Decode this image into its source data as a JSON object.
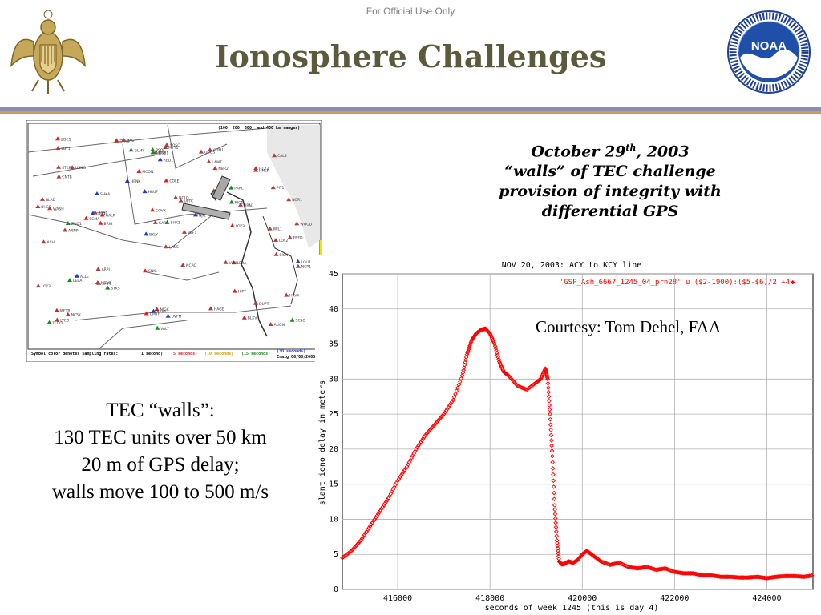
{
  "header": {
    "official_notice": "For Official Use Only",
    "title": "Ionosphere Challenges"
  },
  "logos": {
    "noaa_ring_text": "NATIONAL OCEANIC AND ATMOSPHERIC ADMINISTRATION · U.S. DEPARTMENT OF COMMERCE",
    "noaa_letters": "NOAA"
  },
  "caption": {
    "date_month_day": "October 29",
    "date_suffix": "th",
    "date_year": ", 2003",
    "line2": "“walls” of TEC challenge",
    "line3": "provision of integrity with",
    "line4": "differential GPS"
  },
  "walls_text": {
    "line1": "TEC “walls”:",
    "line2": "130 TEC units over 50 km",
    "line3": "20 m of GPS delay;",
    "line4": "walls move 100 to 500 m/s"
  },
  "map": {
    "header_note": "(100, 200, 300, and 400 km ranges)",
    "footer_note": "Symbol color denotes sampling rates:",
    "rate_1": "(1 second)",
    "rate_5": "(5 seconds)",
    "rate_10": "(10 seconds)",
    "rate_15": "(15 seconds)",
    "rate_30": "(30 seconds)",
    "credit": "Craig 06/08/2003",
    "station_labels": [
      "LANS",
      "BRIG",
      "METR",
      "HRUF",
      "CUM1",
      "ARPI",
      "BEF1",
      "TLDO",
      "ZOO1",
      "SCMA",
      "PIT1",
      "WOOD",
      "UPTC",
      "HRN1",
      "LYCO",
      "WIL1",
      "NJI2",
      "LAMT",
      "ROB1",
      "SNKI",
      "NOR1",
      "SHK1",
      "GARF",
      "SMFB",
      "STKS",
      "SCSO",
      "LEBA",
      "BLAD",
      "OTS1",
      "PARL",
      "BHES",
      "NJTW",
      "NJGC",
      "RED1",
      "PIT1",
      "ALLE",
      "HAGE",
      "HT23",
      "ZDC1",
      "DUPT",
      "SOSC",
      "MYT1",
      "SHKA",
      "USNO",
      "GODS",
      "ANNP",
      "LOY3",
      "RIC1",
      "VIMS",
      "GLMY",
      "LOY1",
      "DRV1",
      "COVX",
      "LOY2",
      "NCSK",
      "UVFM",
      "VALY",
      "BKLY",
      "BLKV",
      "LOU1",
      "PSOC",
      "NCRC",
      "HIPT",
      "RALR",
      "WASH",
      "NCP1",
      "NBR2",
      "NCLO",
      "FRED",
      "MCON",
      "MTVR",
      "SIGN",
      "HMLK",
      "GMTH",
      "STKR",
      "GALP",
      "VAST",
      "LOY3",
      "CAL8",
      "BSSP",
      "LEBA",
      "ASHL",
      "HPNK",
      "COLE",
      "AUGN",
      "HRVA",
      "CNTB"
    ]
  },
  "chart_data": {
    "type": "scatter",
    "title": "NOV 20, 2003: ACY to KCY line",
    "xlabel": "seconds of week 1245 (this is day 4)",
    "ylabel": "slant iono delay in meters",
    "xlim": [
      414800,
      425000
    ],
    "ylim": [
      0,
      45
    ],
    "xticks": [
      416000,
      418000,
      420000,
      422000,
      424000
    ],
    "yticks": [
      0,
      5,
      10,
      15,
      20,
      25,
      30,
      35,
      40,
      45
    ],
    "grid": true,
    "legend": "top-right",
    "color": "#ff0000",
    "series": [
      {
        "name": "'GSP_Ash_6667_1245_04_prn28' u ($2-1900):($5-$6)/2 +4",
        "x": [
          414800,
          415000,
          415200,
          415400,
          415600,
          415800,
          416000,
          416200,
          416400,
          416600,
          416800,
          417000,
          417200,
          417400,
          417500,
          417600,
          417700,
          417800,
          417900,
          418000,
          418100,
          418200,
          418300,
          418400,
          418600,
          418800,
          419000,
          419100,
          419200,
          419250,
          419300,
          419350,
          419400,
          419450,
          419500,
          419550,
          419600,
          419700,
          419800,
          419900,
          420000,
          420100,
          420200,
          420300,
          420400,
          420600,
          420800,
          421000,
          421200,
          421400,
          421600,
          421800,
          422000,
          422200,
          422400,
          422600,
          422800,
          423000,
          423200,
          423400,
          423600,
          423800,
          424000,
          424200,
          424400,
          424600,
          424800,
          425000
        ],
        "y": [
          4.5,
          5.5,
          7.0,
          9.0,
          11.0,
          13.0,
          15.5,
          17.5,
          20.0,
          22.0,
          23.5,
          25.0,
          27.0,
          30.5,
          33.5,
          35.5,
          36.5,
          37.0,
          37.2,
          36.5,
          35.0,
          32.5,
          31.0,
          30.5,
          29.0,
          28.5,
          29.5,
          30.0,
          31.5,
          30.0,
          25.0,
          19.0,
          12.0,
          7.0,
          4.0,
          3.6,
          3.6,
          4.0,
          3.8,
          4.2,
          5.0,
          5.5,
          5.0,
          4.5,
          4.0,
          3.5,
          3.8,
          3.2,
          3.0,
          3.2,
          2.8,
          3.0,
          2.5,
          2.3,
          2.3,
          2.0,
          2.0,
          1.8,
          1.8,
          1.7,
          1.7,
          1.8,
          1.6,
          1.8,
          1.9,
          1.9,
          1.8,
          2.0
        ]
      }
    ],
    "courtesy": "Courtesy: Tom Dehel, FAA"
  }
}
